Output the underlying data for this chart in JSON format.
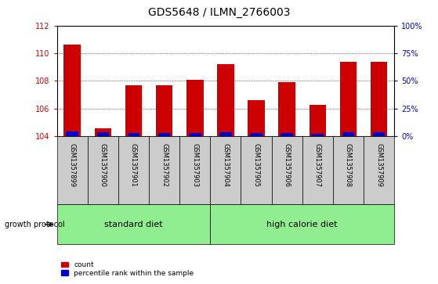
{
  "title": "GDS5648 / ILMN_2766003",
  "samples": [
    "GSM1357899",
    "GSM1357900",
    "GSM1357901",
    "GSM1357902",
    "GSM1357903",
    "GSM1357904",
    "GSM1357905",
    "GSM1357906",
    "GSM1357907",
    "GSM1357908",
    "GSM1357909"
  ],
  "count_values": [
    110.65,
    104.6,
    107.7,
    107.7,
    108.1,
    109.2,
    106.6,
    107.9,
    106.3,
    109.4,
    109.4
  ],
  "percentile_values": [
    4.5,
    4.0,
    3.0,
    3.0,
    3.0,
    4.0,
    3.0,
    3.0,
    2.0,
    4.0,
    4.0
  ],
  "ymin": 104,
  "ymax": 112,
  "yticks": [
    104,
    106,
    108,
    110,
    112
  ],
  "right_yticks": [
    0,
    25,
    50,
    75,
    100
  ],
  "bar_color": "#cc0000",
  "blue_color": "#0000cc",
  "bar_width": 0.55,
  "blue_bar_width": 0.4,
  "background_color": "#ffffff",
  "xlabel_color": "#cc0000",
  "right_label_color": "#0000cc",
  "group_color": "#90ee90",
  "tick_box_color": "#cccccc",
  "growth_label": "growth protocol",
  "legend_count": "count",
  "legend_percentile": "percentile rank within the sample",
  "title_fontsize": 10,
  "tick_fontsize": 7,
  "sample_fontsize": 6,
  "group_fontsize": 8
}
